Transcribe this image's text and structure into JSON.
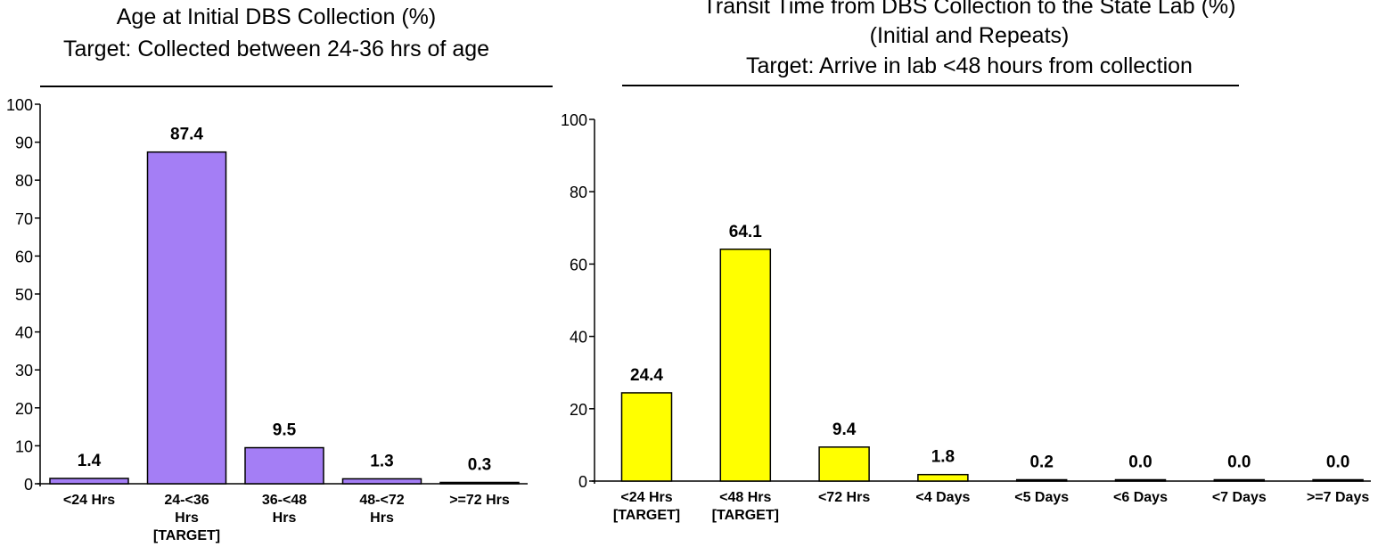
{
  "chart_data": [
    {
      "type": "bar",
      "title": "Age at Initial DBS Collection (%)",
      "subtitle": "Target: Collected between 24-36 hrs of age",
      "categories": [
        [
          "<24 Hrs"
        ],
        [
          "24-<36",
          "Hrs",
          "[TARGET]"
        ],
        [
          "36-<48",
          "Hrs"
        ],
        [
          "48-<72",
          "Hrs"
        ],
        [
          ">=72 Hrs"
        ]
      ],
      "values": [
        1.4,
        87.4,
        9.5,
        1.3,
        0.3
      ],
      "value_labels": [
        "1.4",
        "87.4",
        "9.5",
        "1.3",
        "0.3"
      ],
      "ylim": [
        0,
        100
      ],
      "yticks": [
        0,
        10,
        20,
        30,
        40,
        50,
        60,
        70,
        80,
        90,
        100
      ],
      "xlabel": "",
      "ylabel": "",
      "bar_color": "#a47ef5",
      "grid": false
    },
    {
      "type": "bar",
      "title": "Transit Time from DBS Collection to the State Lab (%)",
      "subtitle": "(Initial and Repeats)",
      "subtitle2": "Target: Arrive in lab <48 hours from collection",
      "categories": [
        [
          "<24 Hrs",
          "[TARGET]"
        ],
        [
          "<48 Hrs",
          "[TARGET]"
        ],
        [
          "<72 Hrs"
        ],
        [
          "<4 Days"
        ],
        [
          "<5 Days"
        ],
        [
          "<6 Days"
        ],
        [
          "<7 Days"
        ],
        [
          ">=7 Days"
        ]
      ],
      "values": [
        24.4,
        64.1,
        9.4,
        1.8,
        0.2,
        0.0,
        0.0,
        0.0
      ],
      "value_labels": [
        "24.4",
        "64.1",
        "9.4",
        "1.8",
        "0.2",
        "0.0",
        "0.0",
        "0.0"
      ],
      "ylim": [
        0,
        100
      ],
      "yticks": [
        0,
        20,
        40,
        60,
        80,
        100
      ],
      "xlabel": "",
      "ylabel": "",
      "bar_color": "#ffff00",
      "grid": false
    }
  ]
}
